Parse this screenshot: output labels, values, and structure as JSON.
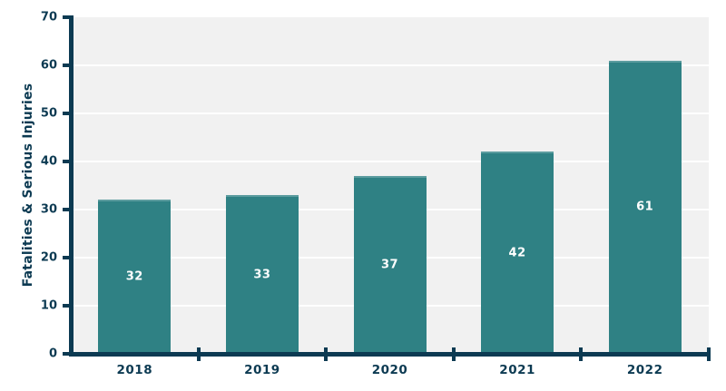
{
  "chart_data": {
    "type": "bar",
    "categories": [
      "2018",
      "2019",
      "2020",
      "2021",
      "2022"
    ],
    "values": [
      32,
      33,
      37,
      42,
      61
    ],
    "bar_labels": [
      "32",
      "33",
      "37",
      "42",
      "61"
    ],
    "title": "",
    "xlabel": "",
    "ylabel": "Fatalities & Serious Injuries",
    "ylim": [
      0,
      70
    ],
    "yticks": [
      0,
      10,
      20,
      30,
      40,
      50,
      60,
      70
    ],
    "grid": "horizontal white gridlines at each y tick",
    "legend_position": "none",
    "bar_label_position": "inside-center"
  },
  "colors": {
    "bar_fill": "#2f8184",
    "axis_and_text": "#0c3a52",
    "bar_label_text": "#ffffff",
    "plot_background": "#f1f1f1",
    "gridline": "#ffffff",
    "page_background": "#ffffff"
  }
}
